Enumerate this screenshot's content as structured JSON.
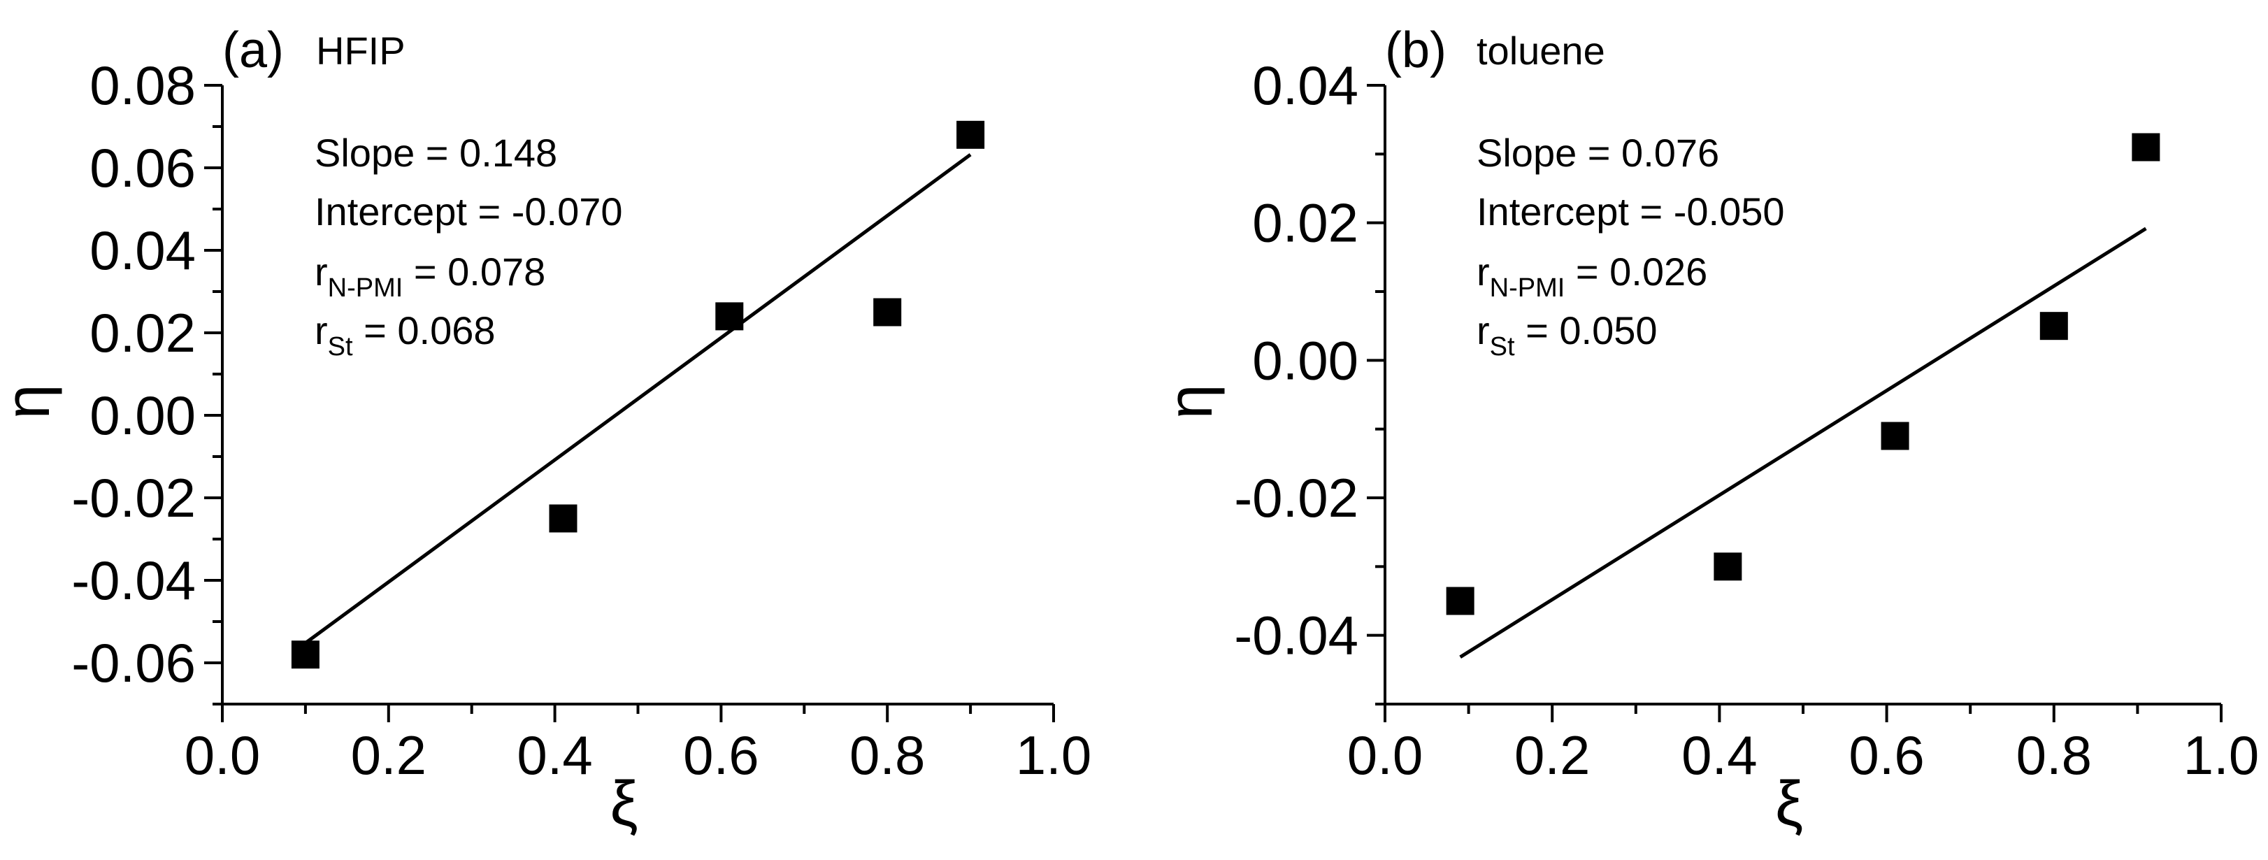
{
  "chart_data": [
    {
      "type": "scatter",
      "panel_label": "(a)",
      "title": "HFIP",
      "xlabel": "ξ",
      "ylabel": "η",
      "xlim": [
        0.0,
        1.0
      ],
      "ylim": [
        -0.07,
        0.08
      ],
      "x_ticks": [
        0.0,
        0.2,
        0.4,
        0.6,
        0.8,
        1.0
      ],
      "x_tick_labels": [
        "0.0",
        "0.2",
        "0.4",
        "0.6",
        "0.8",
        "1.0"
      ],
      "y_ticks": [
        -0.06,
        -0.04,
        -0.02,
        0.0,
        0.02,
        0.04,
        0.06,
        0.08
      ],
      "y_tick_labels": [
        "-0.06",
        "-0.04",
        "-0.02",
        "0.00",
        "0.02",
        "0.04",
        "0.06",
        "0.08"
      ],
      "points": [
        {
          "x": 0.1,
          "y": -0.058
        },
        {
          "x": 0.41,
          "y": -0.025
        },
        {
          "x": 0.61,
          "y": 0.024
        },
        {
          "x": 0.8,
          "y": 0.025
        },
        {
          "x": 0.9,
          "y": 0.068
        }
      ],
      "fit": {
        "slope": 0.148,
        "intercept": -0.07,
        "x_range": [
          0.1,
          0.9
        ]
      },
      "annotations": {
        "slope": "Slope = 0.148",
        "intercept": "Intercept = -0.070",
        "r_npmi_prefix": "r",
        "r_npmi_sub": "N-PMI",
        "r_npmi_value": " = 0.078",
        "r_st_prefix": "r",
        "r_st_sub": "St",
        "r_st_value": " = 0.068"
      }
    },
    {
      "type": "scatter",
      "panel_label": "(b)",
      "title": "toluene",
      "xlabel": "ξ",
      "ylabel": "η",
      "xlim": [
        0.0,
        1.0
      ],
      "ylim": [
        -0.05,
        0.04
      ],
      "x_ticks": [
        0.0,
        0.2,
        0.4,
        0.6,
        0.8,
        1.0
      ],
      "x_tick_labels": [
        "0.0",
        "0.2",
        "0.4",
        "0.6",
        "0.8",
        "1.0"
      ],
      "y_ticks": [
        -0.04,
        -0.02,
        0.0,
        0.02,
        0.04
      ],
      "y_tick_labels": [
        "-0.04",
        "-0.02",
        "0.00",
        "0.02",
        "0.04"
      ],
      "points": [
        {
          "x": 0.09,
          "y": -0.035
        },
        {
          "x": 0.41,
          "y": -0.03
        },
        {
          "x": 0.61,
          "y": -0.011
        },
        {
          "x": 0.8,
          "y": 0.005
        },
        {
          "x": 0.91,
          "y": 0.031
        }
      ],
      "fit": {
        "slope": 0.076,
        "intercept": -0.05,
        "x_range": [
          0.09,
          0.91
        ]
      },
      "annotations": {
        "slope": "Slope = 0.076",
        "intercept": "Intercept = -0.050",
        "r_npmi_prefix": "r",
        "r_npmi_sub": "N-PMI",
        "r_npmi_value": " = 0.026",
        "r_st_prefix": "r",
        "r_st_sub": "St",
        "r_st_value": " = 0.050"
      }
    }
  ]
}
